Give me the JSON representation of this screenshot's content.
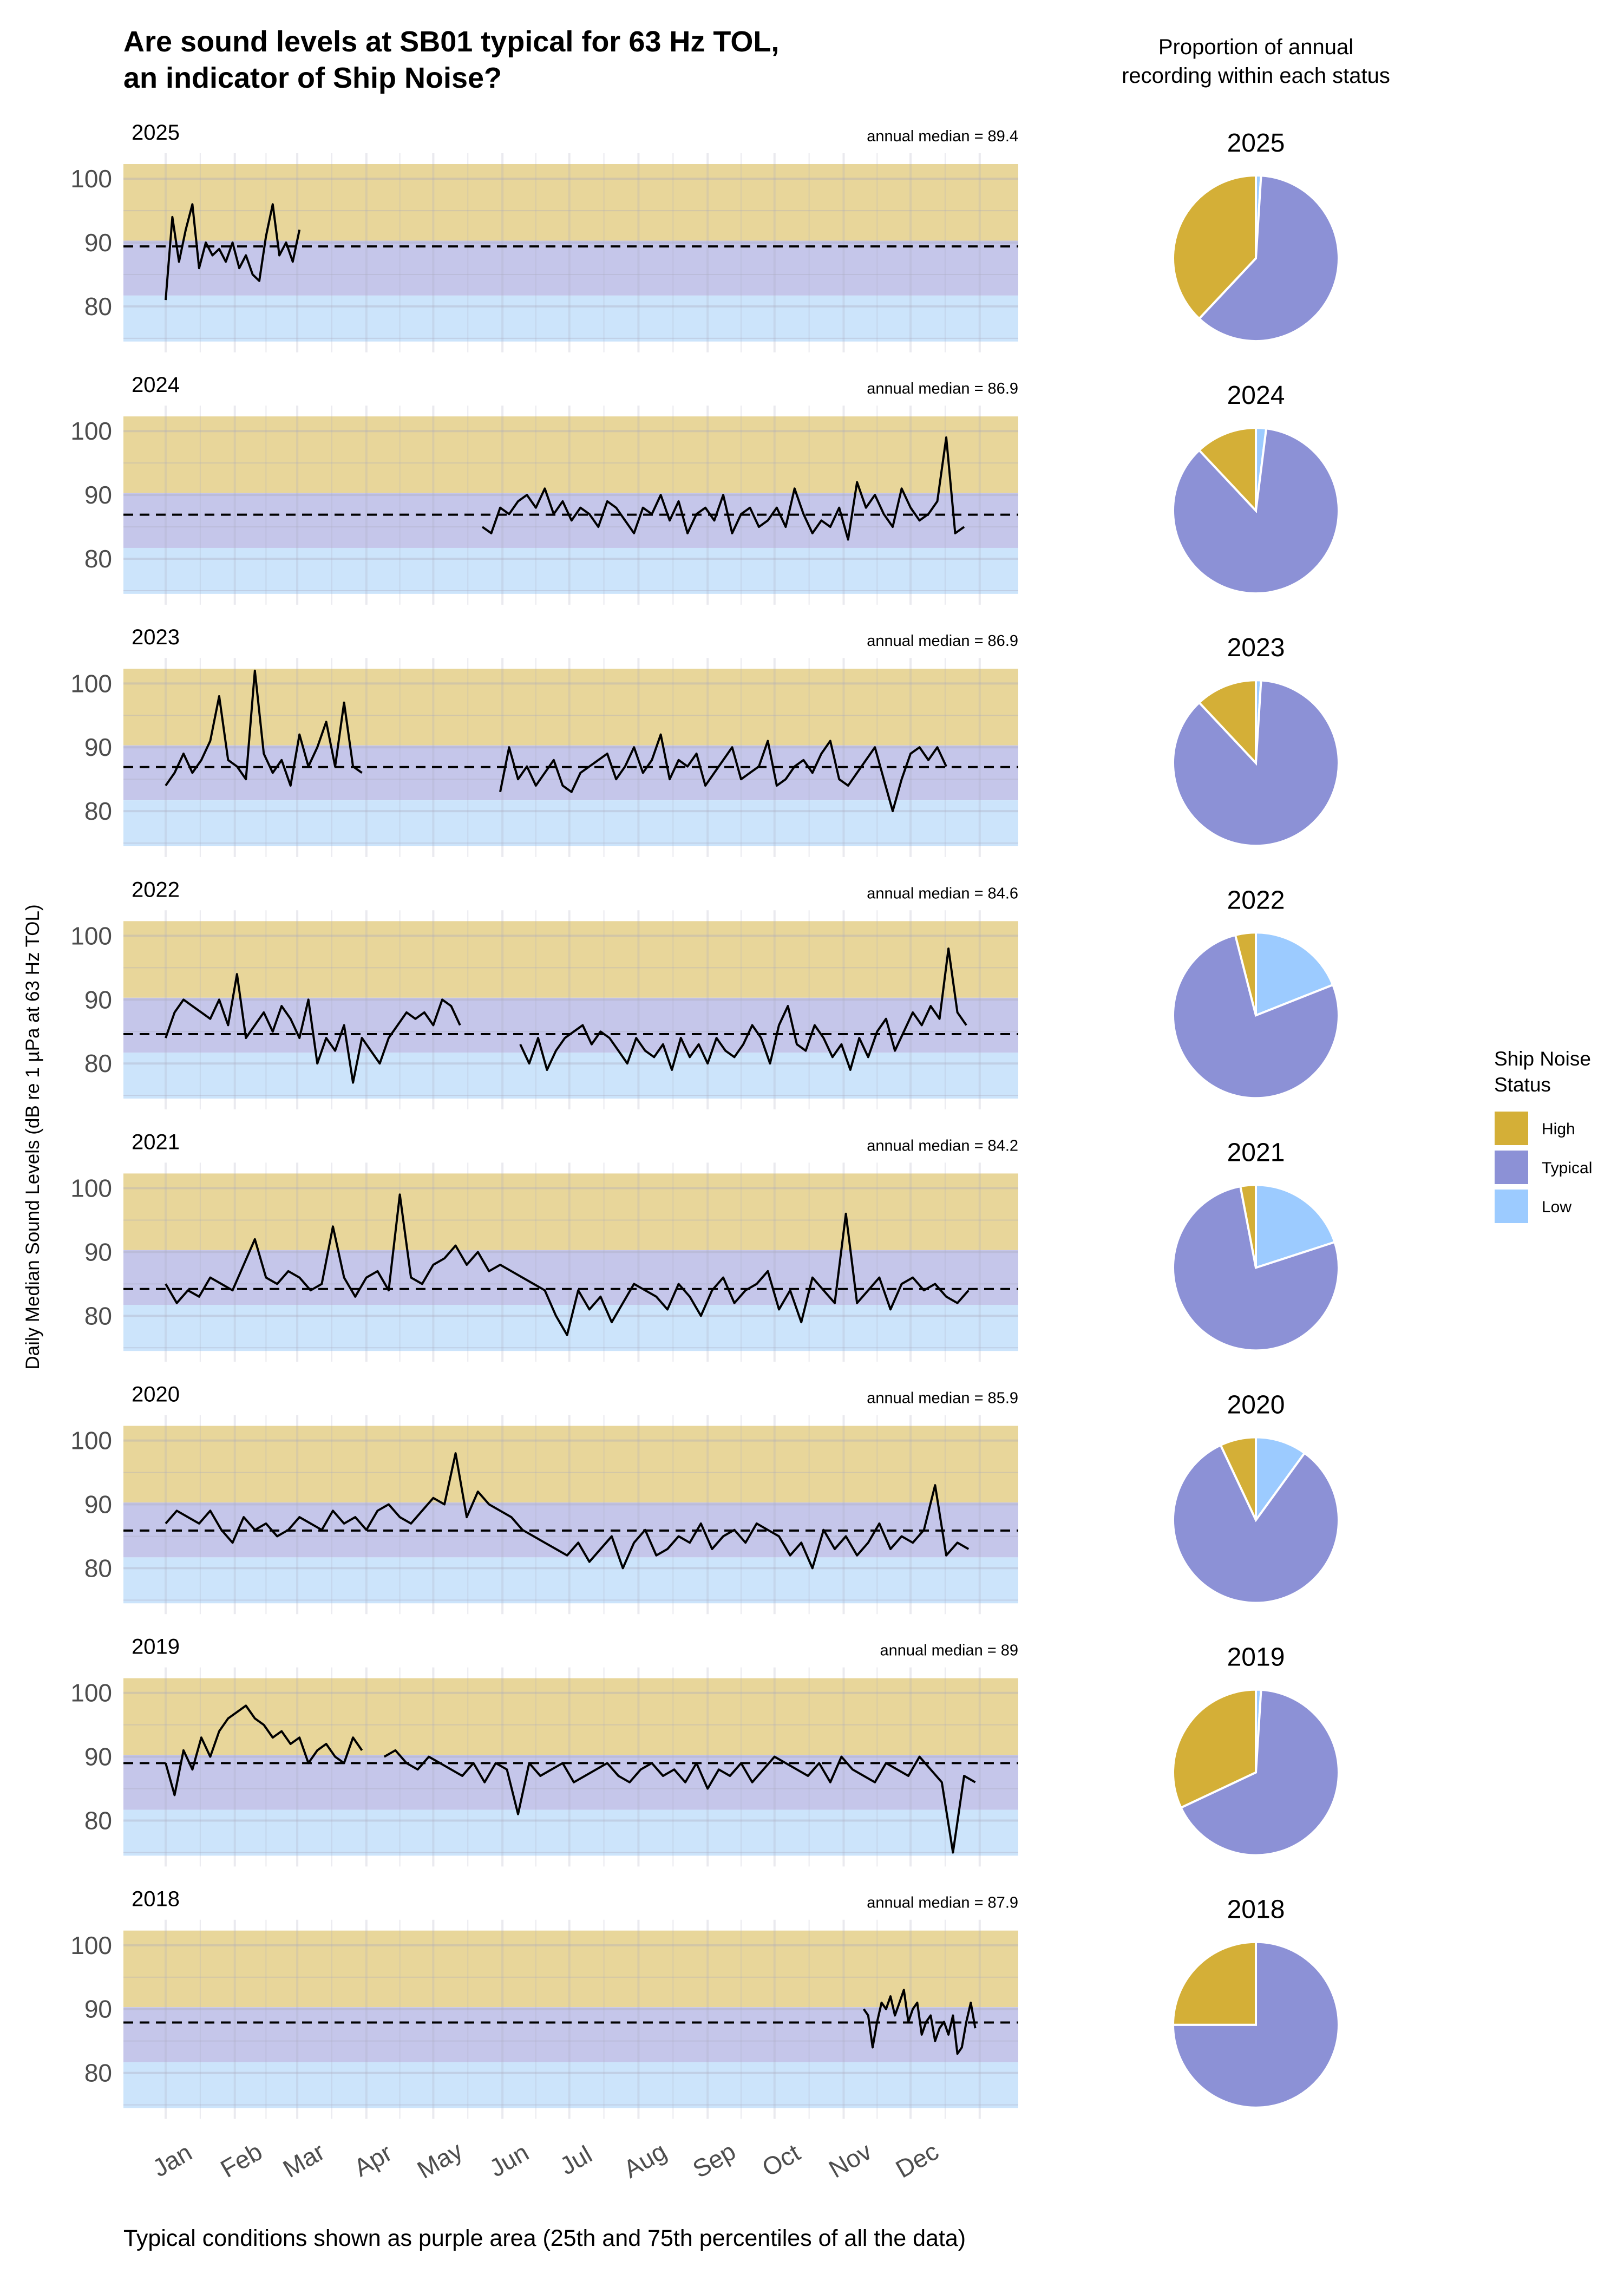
{
  "title_line1": "Are sound levels at SB01 typical for 63 Hz TOL,",
  "title_line2": "an indicator of Ship Noise?",
  "pie_heading_line1": "Proportion of annual",
  "pie_heading_line2": "recording within each status",
  "y_axis_label": "Daily Median Sound Levels (dB re 1 µPa at 63 Hz TOL)",
  "caption": "Typical conditions shown as purple area (25th and 75th percentiles of all the data)",
  "legend": {
    "title_line1": "Ship Noise",
    "title_line2": "Status",
    "items": [
      {
        "label": "High",
        "color": "#d4af37"
      },
      {
        "label": "Typical",
        "color": "#8c91d6"
      },
      {
        "label": "Low",
        "color": "#9ccbff"
      }
    ]
  },
  "chart_data": [
    {
      "type": "line",
      "xlabel": "",
      "ylabel": "Daily Median Sound Levels (dB re 1 µPa at 63 Hz TOL)",
      "x_tick_labels": [
        "Jan",
        "Feb",
        "Mar",
        "Apr",
        "May",
        "Jun",
        "Jul",
        "Aug",
        "Sep",
        "Oct",
        "Nov",
        "Dec"
      ],
      "y_ticks": [
        80,
        90,
        100
      ],
      "ylim": [
        74.5,
        102.3
      ],
      "grid": true,
      "bands": {
        "low": {
          "range": [
            74.5,
            81.7
          ],
          "color": "#cce4fb"
        },
        "typical": {
          "range": [
            81.7,
            90.3
          ],
          "color": "#c5c6ea"
        },
        "high": {
          "range": [
            90.3,
            102.3
          ],
          "color": "#e8d69a"
        }
      },
      "median_line_style": "dashed",
      "panels": [
        {
          "year": "2025",
          "median_label": "annual median = 89.4",
          "annual_median": 89.4,
          "segments": [
            {
              "start": "Jan 1",
              "interval_days": 3,
              "values": [
                81,
                94,
                87,
                92,
                96,
                86,
                90,
                88,
                89,
                87,
                90,
                86,
                88,
                85,
                84,
                91,
                96,
                88,
                90,
                87,
                92
              ]
            }
          ]
        },
        {
          "year": "2024",
          "median_label": "annual median = 86.9",
          "annual_median": 86.9,
          "segments": [
            {
              "start": "May 23",
              "interval_days": 4,
              "values": [
                85,
                84,
                88,
                87,
                89,
                90,
                88,
                91,
                87,
                89,
                86,
                88,
                87,
                85,
                89,
                88,
                86,
                84,
                88,
                87,
                90,
                86,
                89,
                84,
                87,
                88,
                86,
                90,
                84,
                87,
                88,
                85,
                86,
                88,
                85,
                91,
                87,
                84,
                86,
                85,
                88,
                83,
                92,
                88,
                90,
                87,
                85,
                91,
                88,
                86,
                87,
                89,
                99,
                84,
                85
              ]
            }
          ]
        },
        {
          "year": "2023",
          "median_label": "annual median = 86.9",
          "annual_median": 86.9,
          "segments": [
            {
              "start": "Jan 1",
              "interval_days": 4,
              "values": [
                84,
                86,
                89,
                86,
                88,
                91,
                98,
                88,
                87,
                85,
                102,
                89,
                86,
                88,
                84,
                92,
                87,
                90,
                94,
                87,
                97,
                87,
                86
              ]
            },
            {
              "start": "May 31",
              "interval_days": 4,
              "values": [
                83,
                90,
                85,
                87,
                84,
                86,
                88,
                84,
                83,
                86,
                87,
                88,
                89,
                85,
                87,
                90,
                86,
                88,
                92,
                85,
                88,
                87,
                89,
                84,
                86,
                88,
                90,
                85,
                86,
                87,
                91,
                84,
                85,
                87,
                88,
                86,
                89,
                91,
                85,
                84,
                86,
                88,
                90,
                85,
                80,
                85,
                89,
                90,
                88,
                90,
                87
              ]
            }
          ]
        },
        {
          "year": "2022",
          "median_label": "annual median = 84.6",
          "annual_median": 84.6,
          "segments": [
            {
              "start": "Jan 1",
              "interval_days": 4,
              "values": [
                84,
                88,
                90,
                89,
                88,
                87,
                90,
                86,
                94,
                84,
                86,
                88,
                85,
                89,
                87,
                84,
                90,
                80,
                84,
                82,
                86,
                77,
                84,
                82,
                80,
                84,
                86,
                88,
                87,
                88,
                86,
                90,
                89,
                86
              ]
            },
            {
              "start": "Jun 9",
              "interval_days": 4,
              "values": [
                83,
                80,
                84,
                79,
                82,
                84,
                85,
                86,
                83,
                85,
                84,
                82,
                80,
                84,
                82,
                81,
                83,
                79,
                84,
                81,
                83,
                80,
                84,
                82,
                81,
                83,
                86,
                84,
                80,
                86,
                89,
                83,
                82,
                86,
                84,
                81,
                83,
                79,
                84,
                81,
                85,
                87,
                82,
                85,
                88,
                86,
                89,
                87,
                98,
                88,
                86
              ]
            }
          ]
        },
        {
          "year": "2021",
          "median_label": "annual median = 84.2",
          "annual_median": 84.2,
          "segments": [
            {
              "start": "Jan 1",
              "interval_days": 5,
              "values": [
                85,
                82,
                84,
                83,
                86,
                85,
                84,
                88,
                92,
                86,
                85,
                87,
                86,
                84,
                85,
                94,
                86,
                83,
                86,
                87,
                84,
                99,
                86,
                85,
                88,
                89,
                91,
                88,
                90,
                87,
                88,
                87,
                86,
                85,
                84,
                80,
                77,
                84,
                81,
                83,
                79,
                82,
                85,
                84,
                83,
                81,
                85,
                83,
                80,
                84,
                86,
                82,
                84,
                85,
                87,
                81,
                84,
                79,
                86,
                84,
                82,
                96,
                82,
                84,
                86,
                81,
                85,
                86,
                84,
                85,
                83,
                82,
                84
              ]
            }
          ]
        },
        {
          "year": "2020",
          "median_label": "annual median = 85.9",
          "annual_median": 85.9,
          "segments": [
            {
              "start": "Jan 1",
              "interval_days": 5,
              "values": [
                87,
                89,
                88,
                87,
                89,
                86,
                84,
                88,
                86,
                87,
                85,
                86,
                88,
                87,
                86,
                89,
                87,
                88,
                86,
                89,
                90,
                88,
                87,
                89,
                91,
                90,
                98,
                88,
                92,
                90,
                89,
                88,
                86,
                85,
                84,
                83,
                82,
                84,
                81,
                83,
                85,
                80,
                84,
                86,
                82,
                83,
                85,
                84,
                87,
                83,
                85,
                86,
                84,
                87,
                86,
                85,
                82,
                84,
                80,
                86,
                83,
                85,
                82,
                84,
                87,
                83,
                85,
                84,
                86,
                93,
                82,
                84,
                83
              ]
            }
          ]
        },
        {
          "year": "2019",
          "median_label": "annual median = 89",
          "annual_median": 89,
          "segments": [
            {
              "start": "Jan 1",
              "interval_days": 4,
              "values": [
                89,
                84,
                91,
                88,
                93,
                90,
                94,
                96,
                97,
                98,
                96,
                95,
                93,
                94,
                92,
                93,
                89,
                91,
                92,
                90,
                89,
                93,
                91
              ]
            },
            {
              "start": "Apr 9",
              "interval_days": 5,
              "values": [
                90,
                91,
                89,
                88,
                90,
                89,
                88,
                87,
                89,
                86,
                89,
                88,
                81,
                89,
                87,
                88,
                89,
                86,
                87,
                88,
                89,
                87,
                86,
                88,
                89,
                87,
                88,
                86,
                89,
                85,
                88,
                87,
                89,
                86,
                88,
                90,
                89,
                88,
                87,
                89,
                86,
                90,
                88,
                87,
                86,
                89,
                88,
                87,
                90,
                88,
                86,
                75,
                87,
                86
              ]
            }
          ]
        },
        {
          "year": "2018",
          "median_label": "annual median = 87.9",
          "annual_median": 87.9,
          "segments": [
            {
              "start": "Nov 10",
              "interval_days": 2,
              "values": [
                90,
                89,
                84,
                88,
                91,
                90,
                92,
                89,
                91,
                93,
                88,
                90,
                91,
                86,
                88,
                89,
                85,
                87,
                88,
                86,
                89,
                83,
                84,
                88,
                91,
                87
              ]
            }
          ]
        }
      ]
    },
    {
      "type": "pie",
      "title": "Proportion of annual recording within each status",
      "categories": [
        "Low",
        "Typical",
        "High"
      ],
      "colors": [
        "#9ccbff",
        "#8c91d6",
        "#d4af37"
      ],
      "pies": [
        {
          "year": "2025",
          "values": [
            1,
            61,
            38
          ]
        },
        {
          "year": "2024",
          "values": [
            2,
            86,
            12
          ]
        },
        {
          "year": "2023",
          "values": [
            1,
            87,
            12
          ]
        },
        {
          "year": "2022",
          "values": [
            19,
            77,
            4
          ]
        },
        {
          "year": "2021",
          "values": [
            20,
            77,
            3
          ]
        },
        {
          "year": "2020",
          "values": [
            10,
            83,
            7
          ]
        },
        {
          "year": "2019",
          "values": [
            1,
            67,
            32
          ]
        },
        {
          "year": "2018",
          "values": [
            0,
            75,
            25
          ]
        }
      ]
    }
  ]
}
